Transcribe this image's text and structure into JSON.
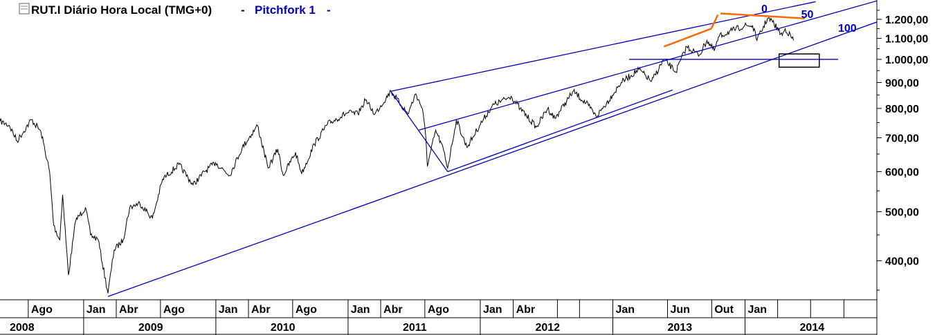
{
  "header": {
    "icon": "chart-settings-icon",
    "symbol_title": "RUT.I Diário Hora Local (TMG+0)",
    "separator": "-",
    "study_name": "Pitchfork 1",
    "study_marker": "-"
  },
  "colors": {
    "price": "#000000",
    "pitchfork": "#0000cc",
    "trendlines": "#ff6a00",
    "target_box": "#000000"
  },
  "chart_data": {
    "type": "line",
    "title": "RUT.I Diário Hora Local (TMG+0)",
    "xlabel": "",
    "ylabel": "",
    "y_scale": "log",
    "ylim": [
      335,
      1310
    ],
    "xlim": [
      "2008-05-15",
      "2014-12-31"
    ],
    "y_ticks": [
      400,
      500,
      600,
      700,
      800,
      900,
      1000,
      1100,
      1200
    ],
    "y_tick_labels": [
      "400,00",
      "500,00",
      "600,00",
      "700,00",
      "800,00",
      "900,00",
      "1.000,00",
      "1.100,00",
      "1.200,00"
    ],
    "x_month_labels": [
      {
        "label": "Ago",
        "date": "2008-08-01"
      },
      {
        "label": "Jan",
        "date": "2009-01-01"
      },
      {
        "label": "Abr",
        "date": "2009-04-01"
      },
      {
        "label": "Ago",
        "date": "2009-08-01"
      },
      {
        "label": "Jan",
        "date": "2010-01-01"
      },
      {
        "label": "Abr",
        "date": "2010-04-01"
      },
      {
        "label": "Ago",
        "date": "2010-08-01"
      },
      {
        "label": "Jan",
        "date": "2011-01-01"
      },
      {
        "label": "Abr",
        "date": "2011-04-01"
      },
      {
        "label": "Ago",
        "date": "2011-08-01"
      },
      {
        "label": "Jan",
        "date": "2012-01-01"
      },
      {
        "label": "Abr",
        "date": "2012-04-01"
      },
      {
        "label": "Jan",
        "date": "2013-01-01"
      },
      {
        "label": "Jun",
        "date": "2013-06-01"
      },
      {
        "label": "Out",
        "date": "2013-10-01"
      },
      {
        "label": "Jan",
        "date": "2014-01-01"
      }
    ],
    "x_year_labels": [
      {
        "label": "2008",
        "date": "2008-08-01"
      },
      {
        "label": "2009",
        "date": "2009-06-01"
      },
      {
        "label": "2010",
        "date": "2010-06-01"
      },
      {
        "label": "2011",
        "date": "2011-06-01"
      },
      {
        "label": "2012",
        "date": "2012-06-01"
      },
      {
        "label": "2013",
        "date": "2013-06-01"
      },
      {
        "label": "2014",
        "date": "2014-06-01"
      }
    ],
    "series": [
      {
        "values": [
          {
            "x": "2008-05-15",
            "y": 755
          },
          {
            "x": "2008-06-10",
            "y": 740
          },
          {
            "x": "2008-07-01",
            "y": 690
          },
          {
            "x": "2008-08-10",
            "y": 760
          },
          {
            "x": "2008-09-05",
            "y": 720
          },
          {
            "x": "2008-09-29",
            "y": 600
          },
          {
            "x": "2008-10-10",
            "y": 470
          },
          {
            "x": "2008-10-27",
            "y": 440
          },
          {
            "x": "2008-11-04",
            "y": 540
          },
          {
            "x": "2008-11-20",
            "y": 375
          },
          {
            "x": "2008-12-10",
            "y": 480
          },
          {
            "x": "2009-01-06",
            "y": 510
          },
          {
            "x": "2009-01-20",
            "y": 450
          },
          {
            "x": "2009-02-10",
            "y": 440
          },
          {
            "x": "2009-03-09",
            "y": 345
          },
          {
            "x": "2009-03-26",
            "y": 420
          },
          {
            "x": "2009-04-20",
            "y": 440
          },
          {
            "x": "2009-05-08",
            "y": 510
          },
          {
            "x": "2009-06-05",
            "y": 520
          },
          {
            "x": "2009-07-10",
            "y": 485
          },
          {
            "x": "2009-08-07",
            "y": 580
          },
          {
            "x": "2009-09-21",
            "y": 620
          },
          {
            "x": "2009-10-30",
            "y": 565
          },
          {
            "x": "2009-12-01",
            "y": 600
          },
          {
            "x": "2009-12-31",
            "y": 625
          },
          {
            "x": "2010-02-08",
            "y": 590
          },
          {
            "x": "2010-03-15",
            "y": 670
          },
          {
            "x": "2010-04-26",
            "y": 740
          },
          {
            "x": "2010-05-25",
            "y": 610
          },
          {
            "x": "2010-06-21",
            "y": 665
          },
          {
            "x": "2010-07-06",
            "y": 590
          },
          {
            "x": "2010-08-09",
            "y": 655
          },
          {
            "x": "2010-08-26",
            "y": 595
          },
          {
            "x": "2010-09-30",
            "y": 680
          },
          {
            "x": "2010-11-05",
            "y": 745
          },
          {
            "x": "2010-12-31",
            "y": 785
          },
          {
            "x": "2011-01-28",
            "y": 780
          },
          {
            "x": "2011-02-18",
            "y": 830
          },
          {
            "x": "2011-03-16",
            "y": 780
          },
          {
            "x": "2011-04-29",
            "y": 865
          },
          {
            "x": "2011-06-15",
            "y": 780
          },
          {
            "x": "2011-07-07",
            "y": 855
          },
          {
            "x": "2011-07-25",
            "y": 800
          },
          {
            "x": "2011-08-04",
            "y": 700
          },
          {
            "x": "2011-08-08",
            "y": 615
          },
          {
            "x": "2011-08-31",
            "y": 725
          },
          {
            "x": "2011-09-22",
            "y": 660
          },
          {
            "x": "2011-10-03",
            "y": 610
          },
          {
            "x": "2011-10-27",
            "y": 760
          },
          {
            "x": "2011-11-25",
            "y": 670
          },
          {
            "x": "2011-12-30",
            "y": 740
          },
          {
            "x": "2012-02-03",
            "y": 810
          },
          {
            "x": "2012-03-26",
            "y": 845
          },
          {
            "x": "2012-04-20",
            "y": 800
          },
          {
            "x": "2012-06-04",
            "y": 735
          },
          {
            "x": "2012-07-05",
            "y": 800
          },
          {
            "x": "2012-07-25",
            "y": 765
          },
          {
            "x": "2012-09-14",
            "y": 865
          },
          {
            "x": "2012-10-26",
            "y": 810
          },
          {
            "x": "2012-11-16",
            "y": 770
          },
          {
            "x": "2012-12-31",
            "y": 850
          },
          {
            "x": "2013-01-24",
            "y": 900
          },
          {
            "x": "2013-03-14",
            "y": 955
          },
          {
            "x": "2013-04-18",
            "y": 905
          },
          {
            "x": "2013-05-22",
            "y": 1000
          },
          {
            "x": "2013-06-24",
            "y": 945
          },
          {
            "x": "2013-07-24",
            "y": 1060
          },
          {
            "x": "2013-08-28",
            "y": 1020
          },
          {
            "x": "2013-09-18",
            "y": 1090
          },
          {
            "x": "2013-10-08",
            "y": 1040
          },
          {
            "x": "2013-10-22",
            "y": 1110
          },
          {
            "x": "2013-11-26",
            "y": 1140
          },
          {
            "x": "2013-12-31",
            "y": 1165
          },
          {
            "x": "2014-01-22",
            "y": 1165
          },
          {
            "x": "2014-02-03",
            "y": 1090
          },
          {
            "x": "2014-03-04",
            "y": 1205
          },
          {
            "x": "2014-03-18",
            "y": 1185
          },
          {
            "x": "2014-04-14",
            "y": 1115
          },
          {
            "x": "2014-04-22",
            "y": 1150
          },
          {
            "x": "2014-05-15",
            "y": 1090
          }
        ]
      }
    ],
    "pitchfork": {
      "name": "Pitchfork 1",
      "pivot": {
        "x": "2011-04-29",
        "y": 865
      },
      "anchor_high": {
        "x": "2011-04-29",
        "y": 865
      },
      "anchor_low": {
        "x": "2011-10-03",
        "y": 600
      },
      "median_start": {
        "x": "2011-07-16",
        "y": 725
      },
      "median_end": {
        "x": "2014-12-31",
        "y": 1305
      },
      "lines": [
        {
          "label": "0",
          "start": {
            "x": "2011-04-29",
            "y": 865
          },
          "end": {
            "x": "2014-07-15",
            "y": 1300
          }
        },
        {
          "label": "50",
          "start": {
            "x": "2011-07-16",
            "y": 725
          },
          "end": {
            "x": "2014-12-31",
            "y": 1305
          }
        },
        {
          "label": "100",
          "start": {
            "x": "2009-03-09",
            "y": 340
          },
          "end": {
            "x": "2014-12-31",
            "y": 1185
          }
        },
        {
          "label": "",
          "start": {
            "x": "2011-10-03",
            "y": 600
          },
          "end": {
            "x": "2013-06-15",
            "y": 870
          }
        }
      ],
      "horizontal_level": {
        "y": 1000,
        "from": "2013-02-15",
        "to": "2014-09-15"
      }
    },
    "trendlines": [
      {
        "start": {
          "x": "2013-05-22",
          "y": 1060
        },
        "end": {
          "x": "2013-09-30",
          "y": 1150
        }
      },
      {
        "start": {
          "x": "2013-09-30",
          "y": 1150
        },
        "end": {
          "x": "2013-10-18",
          "y": 1225
        }
      },
      {
        "start": {
          "x": "2013-10-25",
          "y": 1232
        },
        "end": {
          "x": "2014-06-15",
          "y": 1205
        }
      }
    ],
    "target_box": {
      "x_from": "2014-04-05",
      "x_to": "2014-07-25",
      "y_from": 965,
      "y_to": 1025
    },
    "grid": false,
    "legend": "none"
  }
}
